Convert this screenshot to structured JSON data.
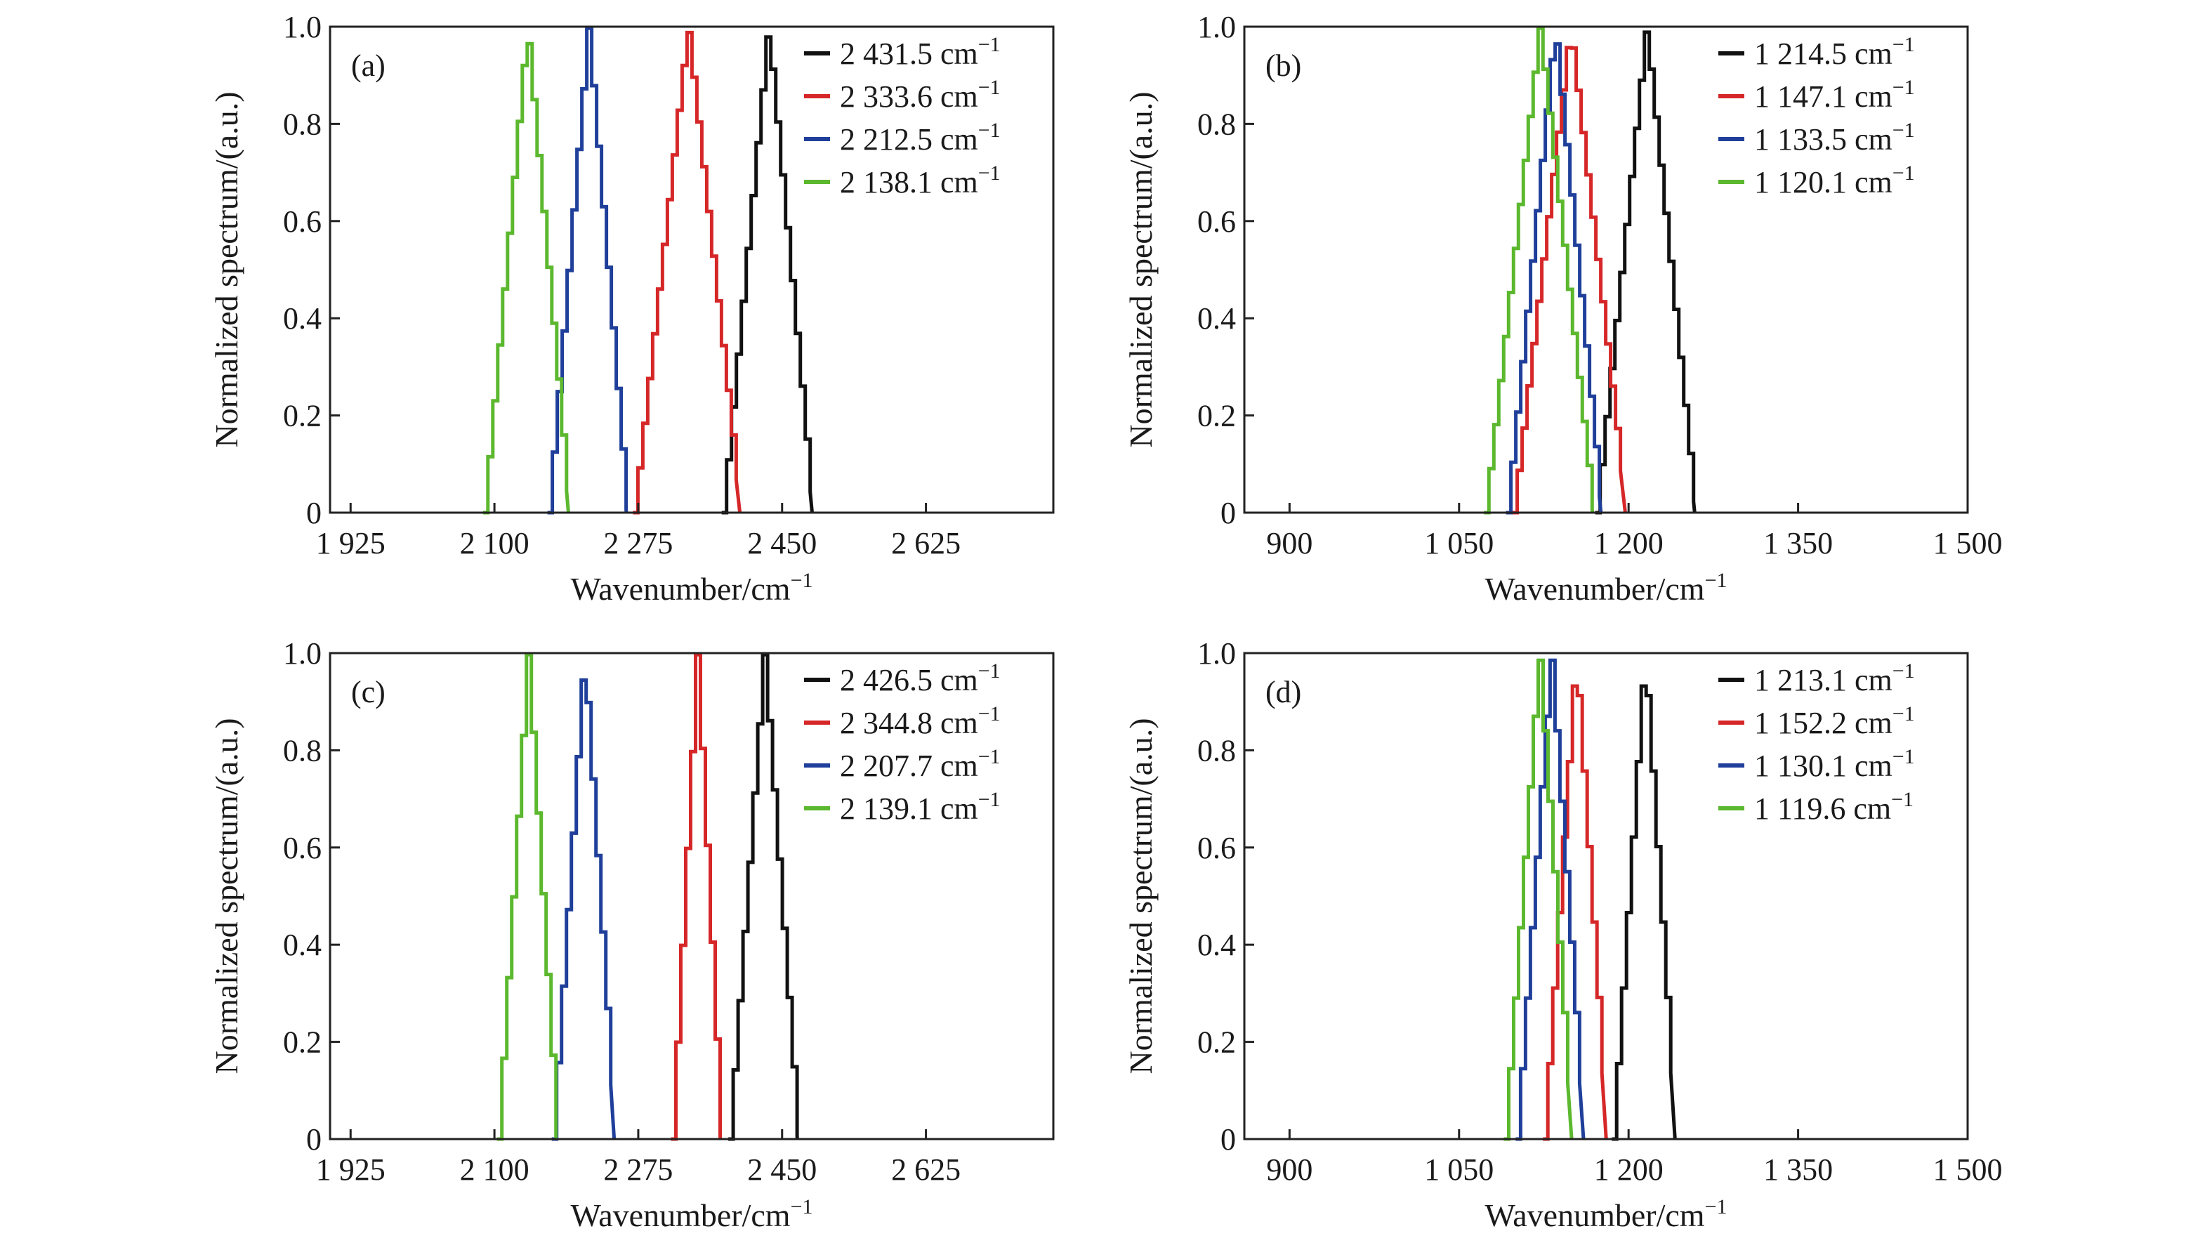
{
  "colors": {
    "black": "#111111",
    "red": "#d62728",
    "blue": "#1f3f9a",
    "green": "#5cb82e"
  },
  "chart_data": [
    {
      "panel": "(a)",
      "type": "line",
      "step_style": true,
      "xlabel": "Wavenumber/cm",
      "xlabel_sup": "−1",
      "ylabel": "Normalized spectrum/(a.u.)",
      "xlim": [
        1900,
        2780
      ],
      "ylim": [
        0,
        1.0
      ],
      "xticks": [
        1925,
        2100,
        2275,
        2450,
        2625
      ],
      "xtick_labels": [
        "1 925",
        "2 100",
        "2 275",
        "2 450",
        "2 625"
      ],
      "yticks": [
        0,
        0.2,
        0.4,
        0.6,
        0.8,
        1.0
      ],
      "ytick_labels": [
        "0",
        "0.2",
        "0.4",
        "0.6",
        "0.8",
        "1.0"
      ],
      "legend_position": "top-right",
      "series": [
        {
          "name": "2 431.5 cm",
          "unit_sup": "−1",
          "color": "black",
          "center": 2431.5,
          "half_width": 55
        },
        {
          "name": "2 333.6 cm",
          "unit_sup": "−1",
          "color": "red",
          "center": 2333.6,
          "half_width": 65
        },
        {
          "name": "2 212.5 cm",
          "unit_sup": "−1",
          "color": "blue",
          "center": 2212.5,
          "half_width": 48
        },
        {
          "name": "2 138.1 cm",
          "unit_sup": "−1",
          "color": "green",
          "center": 2138.1,
          "half_width": 52
        }
      ]
    },
    {
      "panel": "(b)",
      "type": "line",
      "step_style": true,
      "xlabel": "Wavenumber/cm",
      "xlabel_sup": "−1",
      "ylabel": "Normalized spectrum/(a.u.)",
      "xlim": [
        860,
        1500
      ],
      "ylim": [
        0,
        1.0
      ],
      "xticks": [
        900,
        1050,
        1200,
        1350,
        1500
      ],
      "xtick_labels": [
        "900",
        "1 050",
        "1 200",
        "1 350",
        "1 500"
      ],
      "yticks": [
        0,
        0.2,
        0.4,
        0.6,
        0.8,
        1.0
      ],
      "ytick_labels": [
        "0",
        "0.2",
        "0.4",
        "0.6",
        "0.8",
        "1.0"
      ],
      "legend_position": "top-right",
      "series": [
        {
          "name": "1 214.5 cm",
          "unit_sup": "−1",
          "color": "black",
          "center": 1214.5,
          "half_width": 44
        },
        {
          "name": "1 147.1 cm",
          "unit_sup": "−1",
          "color": "red",
          "center": 1147.1,
          "half_width": 50
        },
        {
          "name": "1 133.5 cm",
          "unit_sup": "−1",
          "color": "blue",
          "center": 1133.5,
          "half_width": 42
        },
        {
          "name": "1 120.1 cm",
          "unit_sup": "−1",
          "color": "green",
          "center": 1120.1,
          "half_width": 48
        }
      ]
    },
    {
      "panel": "(c)",
      "type": "line",
      "step_style": true,
      "xlabel": "Wavenumber/cm",
      "xlabel_sup": "−1",
      "ylabel": "Normalized spectrum/(a.u.)",
      "xlim": [
        1900,
        2780
      ],
      "ylim": [
        0,
        1.0
      ],
      "xticks": [
        1925,
        2100,
        2275,
        2450,
        2625
      ],
      "xtick_labels": [
        "1 925",
        "2 100",
        "2 275",
        "2 450",
        "2 625"
      ],
      "yticks": [
        0,
        0.2,
        0.4,
        0.6,
        0.8,
        1.0
      ],
      "ytick_labels": [
        "0",
        "0.2",
        "0.4",
        "0.6",
        "0.8",
        "1.0"
      ],
      "legend_position": "top-right",
      "series": [
        {
          "name": "2 426.5 cm",
          "unit_sup": "−1",
          "color": "black",
          "center": 2426.5,
          "half_width": 42
        },
        {
          "name": "2 344.8 cm",
          "unit_sup": "−1",
          "color": "red",
          "center": 2344.8,
          "half_width": 30
        },
        {
          "name": "2 207.7 cm",
          "unit_sup": "−1",
          "color": "blue",
          "center": 2207.7,
          "half_width": 38
        },
        {
          "name": "2 139.1 cm",
          "unit_sup": "−1",
          "color": "green",
          "center": 2139.1,
          "half_width": 36
        }
      ]
    },
    {
      "panel": "(d)",
      "type": "line",
      "step_style": true,
      "xlabel": "Wavenumber/cm",
      "xlabel_sup": "−1",
      "ylabel": "Normalized spectrum/(a.u.)",
      "xlim": [
        860,
        1500
      ],
      "ylim": [
        0,
        1.0
      ],
      "xticks": [
        900,
        1050,
        1200,
        1350,
        1500
      ],
      "xtick_labels": [
        "900",
        "1 050",
        "1 200",
        "1 350",
        "1 500"
      ],
      "yticks": [
        0,
        0.2,
        0.4,
        0.6,
        0.8,
        1.0
      ],
      "ytick_labels": [
        "0",
        "0.2",
        "0.4",
        "0.6",
        "0.8",
        "1.0"
      ],
      "legend_position": "top-right",
      "series": [
        {
          "name": "1 213.1 cm",
          "unit_sup": "−1",
          "color": "black",
          "center": 1213.1,
          "half_width": 28
        },
        {
          "name": "1 152.2 cm",
          "unit_sup": "−1",
          "color": "red",
          "center": 1152.2,
          "half_width": 28
        },
        {
          "name": "1 130.1 cm",
          "unit_sup": "−1",
          "color": "blue",
          "center": 1130.1,
          "half_width": 30
        },
        {
          "name": "1 119.6 cm",
          "unit_sup": "−1",
          "color": "green",
          "center": 1119.6,
          "half_width": 30
        }
      ]
    }
  ]
}
